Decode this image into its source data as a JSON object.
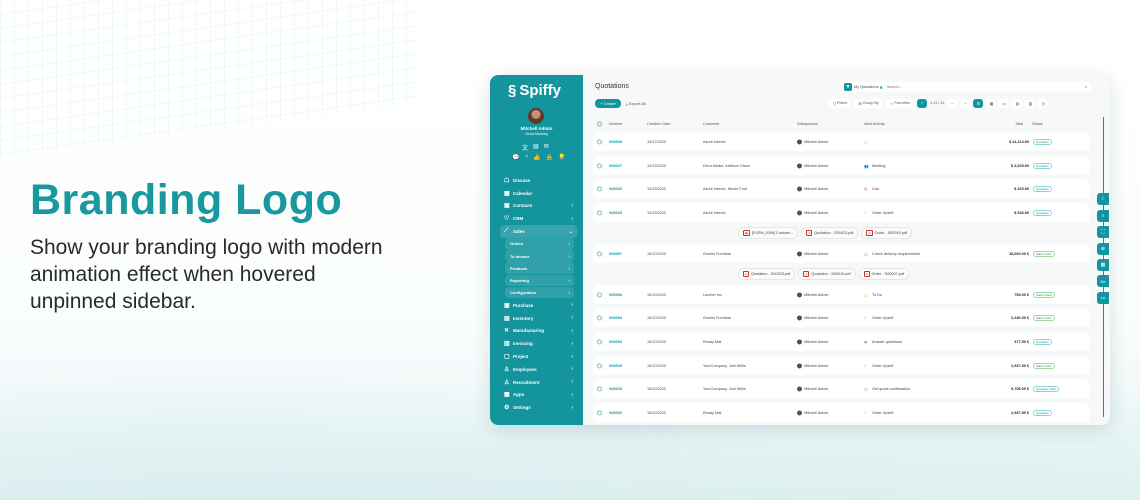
{
  "hero": {
    "title": "Branding Logo",
    "description": "Show your branding logo with modern animation effect when hovered unpinned sidebar."
  },
  "colors": {
    "accent": "#14959e",
    "heading": "#1a98a0"
  },
  "sidebar": {
    "logo": "Spiffy",
    "user_name": "Mitchell Admin",
    "greeting": "Good Morning",
    "items": [
      {
        "label": "Discuss",
        "icon": "chat-icon"
      },
      {
        "label": "Calendar",
        "icon": "calendar-icon"
      },
      {
        "label": "Contacts",
        "icon": "contacts-icon",
        "chevron": true
      },
      {
        "label": "CRM",
        "icon": "crm-icon",
        "chevron": true
      },
      {
        "label": "Sales",
        "icon": "chart-icon",
        "chevron": true,
        "expanded": true
      },
      {
        "label": "Purchase",
        "icon": "purchase-icon",
        "chevron": true
      },
      {
        "label": "Inventory",
        "icon": "inventory-icon",
        "chevron": true
      },
      {
        "label": "Manufacturing",
        "icon": "tools-icon",
        "chevron": true
      },
      {
        "label": "Invoicing",
        "icon": "invoice-icon",
        "chevron": true
      },
      {
        "label": "Project",
        "icon": "project-icon",
        "chevron": true
      },
      {
        "label": "Employees",
        "icon": "employees-icon",
        "chevron": true
      },
      {
        "label": "Recruitment",
        "icon": "recruitment-icon",
        "chevron": true
      },
      {
        "label": "Apps",
        "icon": "apps-icon",
        "chevron": true
      },
      {
        "label": "Settings",
        "icon": "gear-icon",
        "chevron": true
      }
    ],
    "sales_sub": [
      "Orders",
      "To Invoice",
      "Products",
      "Reporting",
      "Configuration"
    ]
  },
  "header": {
    "title": "Quotations",
    "create": "+ Create",
    "export": "Export All",
    "facet": "My Quotations",
    "search_placeholder": "Search...",
    "filters": "Filters",
    "group_by": "Group By",
    "favorites": "Favorites",
    "pager": "1-11 / 11"
  },
  "columns": [
    "Number",
    "Creation Date",
    "Customer",
    "Salesperson",
    "Next Activity",
    "Total",
    "Status"
  ],
  "rows": [
    {
      "number": "S00028",
      "date": "10/17/2022",
      "customer": "Azure Interior",
      "salesperson": "Mitchell Admin",
      "activity": "",
      "total": "$ 24,114.00",
      "status": "Quotation"
    },
    {
      "number": "S00027",
      "date": "10/13/2022",
      "customer": "Deco Addict, Addison Olson",
      "salesperson": "Mitchell Admin",
      "activity": "Meeting",
      "total": "$ 2,025.00",
      "status": "Quotation"
    },
    {
      "number": "S00026",
      "date": "10/13/2022",
      "customer": "Azure Interior, Nicole Ford",
      "salesperson": "Mitchell Admin",
      "activity": "Call",
      "total": "$ 320.00",
      "status": "Quotation"
    },
    {
      "number": "S00023",
      "date": "10/13/2022",
      "customer": "Azure Interior",
      "salesperson": "Mitchell Admin",
      "activity": "Order Upsell",
      "total": "$ 546.00",
      "status": "Quotation"
    },
    {
      "number": "S00007",
      "date": "10/10/2022",
      "customer": "Gemini Furniture",
      "salesperson": "Mitchell Admin",
      "activity": "Check delivery requirements",
      "total": "15,060.00 €",
      "status": "Sales Order"
    },
    {
      "number": "S00006",
      "date": "10/10/2022",
      "customer": "Lumber Inc",
      "salesperson": "Mitchell Admin",
      "activity": "To Do",
      "total": "750.00 €",
      "status": "Sales Order"
    },
    {
      "number": "S00004",
      "date": "10/10/2022",
      "customer": "Gemini Furniture",
      "salesperson": "Mitchell Admin",
      "activity": "Order Upsell",
      "total": "2,240.00 €",
      "status": "Sales Order"
    },
    {
      "number": "S00003",
      "date": "10/10/2022",
      "customer": "Ready Mat",
      "salesperson": "Mitchell Admin",
      "activity": "Answer questions",
      "total": "377.50 €",
      "status": "Quotation"
    },
    {
      "number": "S00019",
      "date": "10/10/2022",
      "customer": "YourCompany, Joel Willis",
      "salesperson": "Mitchell Admin",
      "activity": "Order Upsell",
      "total": "2,947.50 €",
      "status": "Sales Order"
    },
    {
      "number": "S00018",
      "date": "10/10/2022",
      "customer": "YourCompany, Joel Willis",
      "salesperson": "Mitchell Admin",
      "activity": "Get quote confirmation",
      "total": "9,705.00 €",
      "status": "Quotation Sent"
    },
    {
      "number": "S00002",
      "date": "10/10/2022",
      "customer": "Ready Mat",
      "salesperson": "Mitchell Admin",
      "activity": "Order Upsell",
      "total": "2,947.50 €",
      "status": "Quotation"
    }
  ],
  "attachments": [
    [
      "[FURN_0096] Customi...",
      "Quotation - S00023.pdf",
      "Order - S00015.pdf"
    ],
    [
      "Quotation - S00023.pdf",
      "Quotation - S00010.pdf",
      "Order - S00007.pdf"
    ]
  ],
  "side_tabs": [
    "Ne",
    "Le"
  ]
}
